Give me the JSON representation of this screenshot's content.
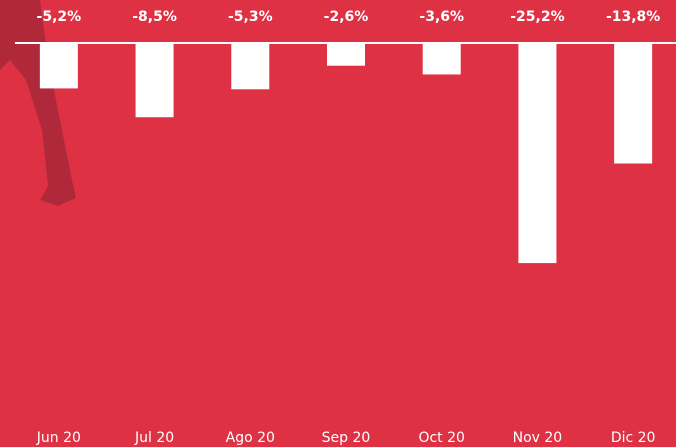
{
  "chart_data": {
    "type": "bar",
    "categories": [
      "Jun 20",
      "Jul 20",
      "Ago 20",
      "Sep 20",
      "Oct 20",
      "Nov 20",
      "Dic 20"
    ],
    "values": [
      -5.2,
      -8.5,
      -5.3,
      -2.6,
      -3.6,
      -25.2,
      -13.8
    ],
    "value_labels": [
      "-5,2%",
      "-8,5%",
      "-5,3%",
      "-2,6%",
      "-3,6%",
      "-25,2%",
      "-13,8%"
    ],
    "color": "#ffffff",
    "ylim": [
      -30,
      0
    ]
  }
}
